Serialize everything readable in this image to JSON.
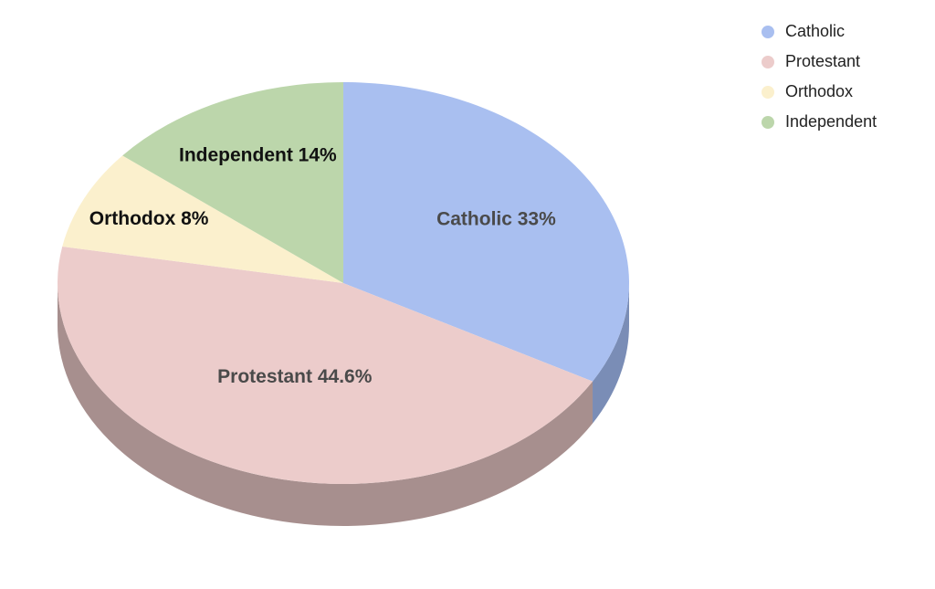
{
  "chart_data": {
    "type": "pie",
    "title": "",
    "style": "3d",
    "slices": [
      {
        "name": "Catholic",
        "value": 33,
        "label": "Catholic 33%",
        "color": "#a9bff0",
        "side_color": "#7a8db6",
        "label_color": "#4a4a4a"
      },
      {
        "name": "Protestant",
        "value": 44.6,
        "label": "Protestant 44.6%",
        "color": "#eccccb",
        "side_color": "#a78f8e",
        "label_color": "#4a4a4a"
      },
      {
        "name": "Orthodox",
        "value": 8,
        "label": "Orthodox 8%",
        "color": "#fbf0cd",
        "side_color": "#b5ab8e",
        "label_color": "#111111"
      },
      {
        "name": "Independent",
        "value": 14,
        "label": "Independent 14%",
        "color": "#bcd6ab",
        "side_color": "#879b7a",
        "label_color": "#111111"
      }
    ],
    "legend": {
      "position": "top-right",
      "items": [
        "Catholic",
        "Protestant",
        "Orthodox",
        "Independent"
      ]
    }
  }
}
